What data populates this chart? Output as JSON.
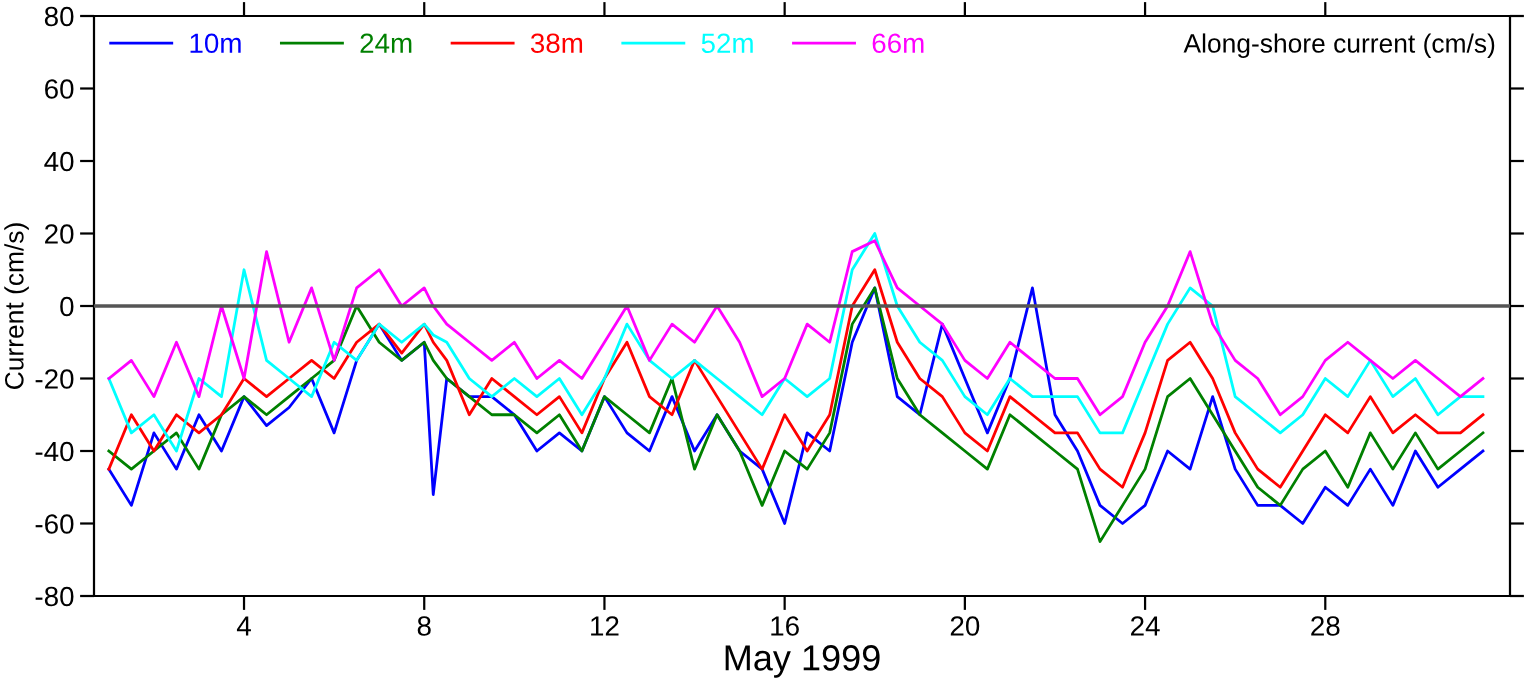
{
  "chart_data": {
    "type": "line",
    "annotations": [
      "Along-shore current (cm/s)"
    ],
    "xlabel": "May 1999",
    "ylabel": "Current (cm/s)",
    "x": [
      1,
      1.5,
      2,
      2.5,
      3,
      3.5,
      4,
      4.5,
      5,
      5.5,
      6,
      6.5,
      7,
      7.5,
      8,
      8.2,
      8.5,
      9,
      9.5,
      10,
      10.5,
      11,
      11.5,
      12,
      12.5,
      13,
      13.5,
      14,
      14.5,
      15,
      15.5,
      16,
      16.5,
      17,
      17.5,
      18,
      18.5,
      19,
      19.5,
      20,
      20.5,
      21,
      21.5,
      22,
      22.5,
      23,
      23.5,
      24,
      24.5,
      25,
      25.5,
      26,
      26.5,
      27,
      27.5,
      28,
      28.5,
      29,
      29.5,
      30,
      30.5,
      31,
      31.5
    ],
    "series": [
      {
        "name": "10m",
        "color": "#0000ff",
        "values": [
          -45,
          -55,
          -35,
          -45,
          -30,
          -40,
          -25,
          -33,
          -28,
          -20,
          -35,
          -15,
          -5,
          -15,
          -10,
          -52,
          -20,
          -25,
          -25,
          -30,
          -40,
          -35,
          -40,
          -25,
          -35,
          -40,
          -25,
          -40,
          -30,
          -40,
          -45,
          -60,
          -35,
          -40,
          -10,
          5,
          -25,
          -30,
          -5,
          -20,
          -35,
          -20,
          5,
          -30,
          -40,
          -55,
          -60,
          -55,
          -40,
          -45,
          -25,
          -45,
          -55,
          -55,
          -60,
          -50,
          -55,
          -45,
          -55,
          -40,
          -50,
          -45,
          -40
        ]
      },
      {
        "name": "24m",
        "color": "#008000",
        "values": [
          -40,
          -45,
          -40,
          -35,
          -45,
          -30,
          -25,
          -30,
          -25,
          -20,
          -15,
          0,
          -10,
          -15,
          -10,
          -15,
          -20,
          -25,
          -30,
          -30,
          -35,
          -30,
          -40,
          -25,
          -30,
          -35,
          -20,
          -45,
          -30,
          -40,
          -55,
          -40,
          -45,
          -35,
          -5,
          5,
          -20,
          -30,
          -35,
          -40,
          -45,
          -30,
          -35,
          -40,
          -45,
          -65,
          -55,
          -45,
          -25,
          -20,
          -30,
          -40,
          -50,
          -55,
          -45,
          -40,
          -50,
          -35,
          -45,
          -35,
          -45,
          -40,
          -35
        ]
      },
      {
        "name": "38m",
        "color": "#ff0000",
        "values": [
          -45,
          -30,
          -40,
          -30,
          -35,
          -30,
          -20,
          -25,
          -20,
          -15,
          -20,
          -10,
          -5,
          -13,
          -5,
          -10,
          -15,
          -30,
          -20,
          -25,
          -30,
          -25,
          -35,
          -20,
          -10,
          -25,
          -30,
          -15,
          -25,
          -35,
          -45,
          -30,
          -40,
          -30,
          0,
          10,
          -10,
          -20,
          -25,
          -35,
          -40,
          -25,
          -30,
          -35,
          -35,
          -45,
          -50,
          -35,
          -15,
          -10,
          -20,
          -35,
          -45,
          -50,
          -40,
          -30,
          -35,
          -25,
          -35,
          -30,
          -35,
          -35,
          -30
        ]
      },
      {
        "name": "52m",
        "color": "#00ffff",
        "values": [
          -20,
          -35,
          -30,
          -40,
          -20,
          -25,
          10,
          -15,
          -20,
          -25,
          -10,
          -15,
          -5,
          -10,
          -5,
          -8,
          -10,
          -20,
          -25,
          -20,
          -25,
          -20,
          -30,
          -20,
          -5,
          -15,
          -20,
          -15,
          -20,
          -25,
          -30,
          -20,
          -25,
          -20,
          10,
          20,
          0,
          -10,
          -15,
          -25,
          -30,
          -20,
          -25,
          -25,
          -25,
          -35,
          -35,
          -20,
          -5,
          5,
          0,
          -25,
          -30,
          -35,
          -30,
          -20,
          -25,
          -15,
          -25,
          -20,
          -30,
          -25,
          -25
        ]
      },
      {
        "name": "66m",
        "color": "#ff00ff",
        "values": [
          -20,
          -15,
          -25,
          -10,
          -25,
          0,
          -20,
          15,
          -10,
          5,
          -15,
          5,
          10,
          0,
          5,
          0,
          -5,
          -10,
          -15,
          -10,
          -20,
          -15,
          -20,
          -10,
          0,
          -15,
          -5,
          -10,
          0,
          -10,
          -25,
          -20,
          -5,
          -10,
          15,
          18,
          5,
          0,
          -5,
          -15,
          -20,
          -10,
          -15,
          -20,
          -20,
          -30,
          -25,
          -10,
          0,
          15,
          -5,
          -15,
          -20,
          -30,
          -25,
          -15,
          -10,
          -15,
          -20,
          -15,
          -20,
          -25,
          -20
        ]
      }
    ],
    "xlim": [
      0.67,
      32.1
    ],
    "xticks": [
      4,
      8,
      12,
      16,
      20,
      24,
      28
    ],
    "ylim": [
      -80,
      80
    ],
    "yticks": [
      -80,
      -60,
      -40,
      -20,
      0,
      20,
      40,
      60,
      80
    ],
    "ref_lines": [
      {
        "axis": "y",
        "value": 0,
        "color": "#555555"
      }
    ],
    "legend": "top left",
    "grid": false
  }
}
